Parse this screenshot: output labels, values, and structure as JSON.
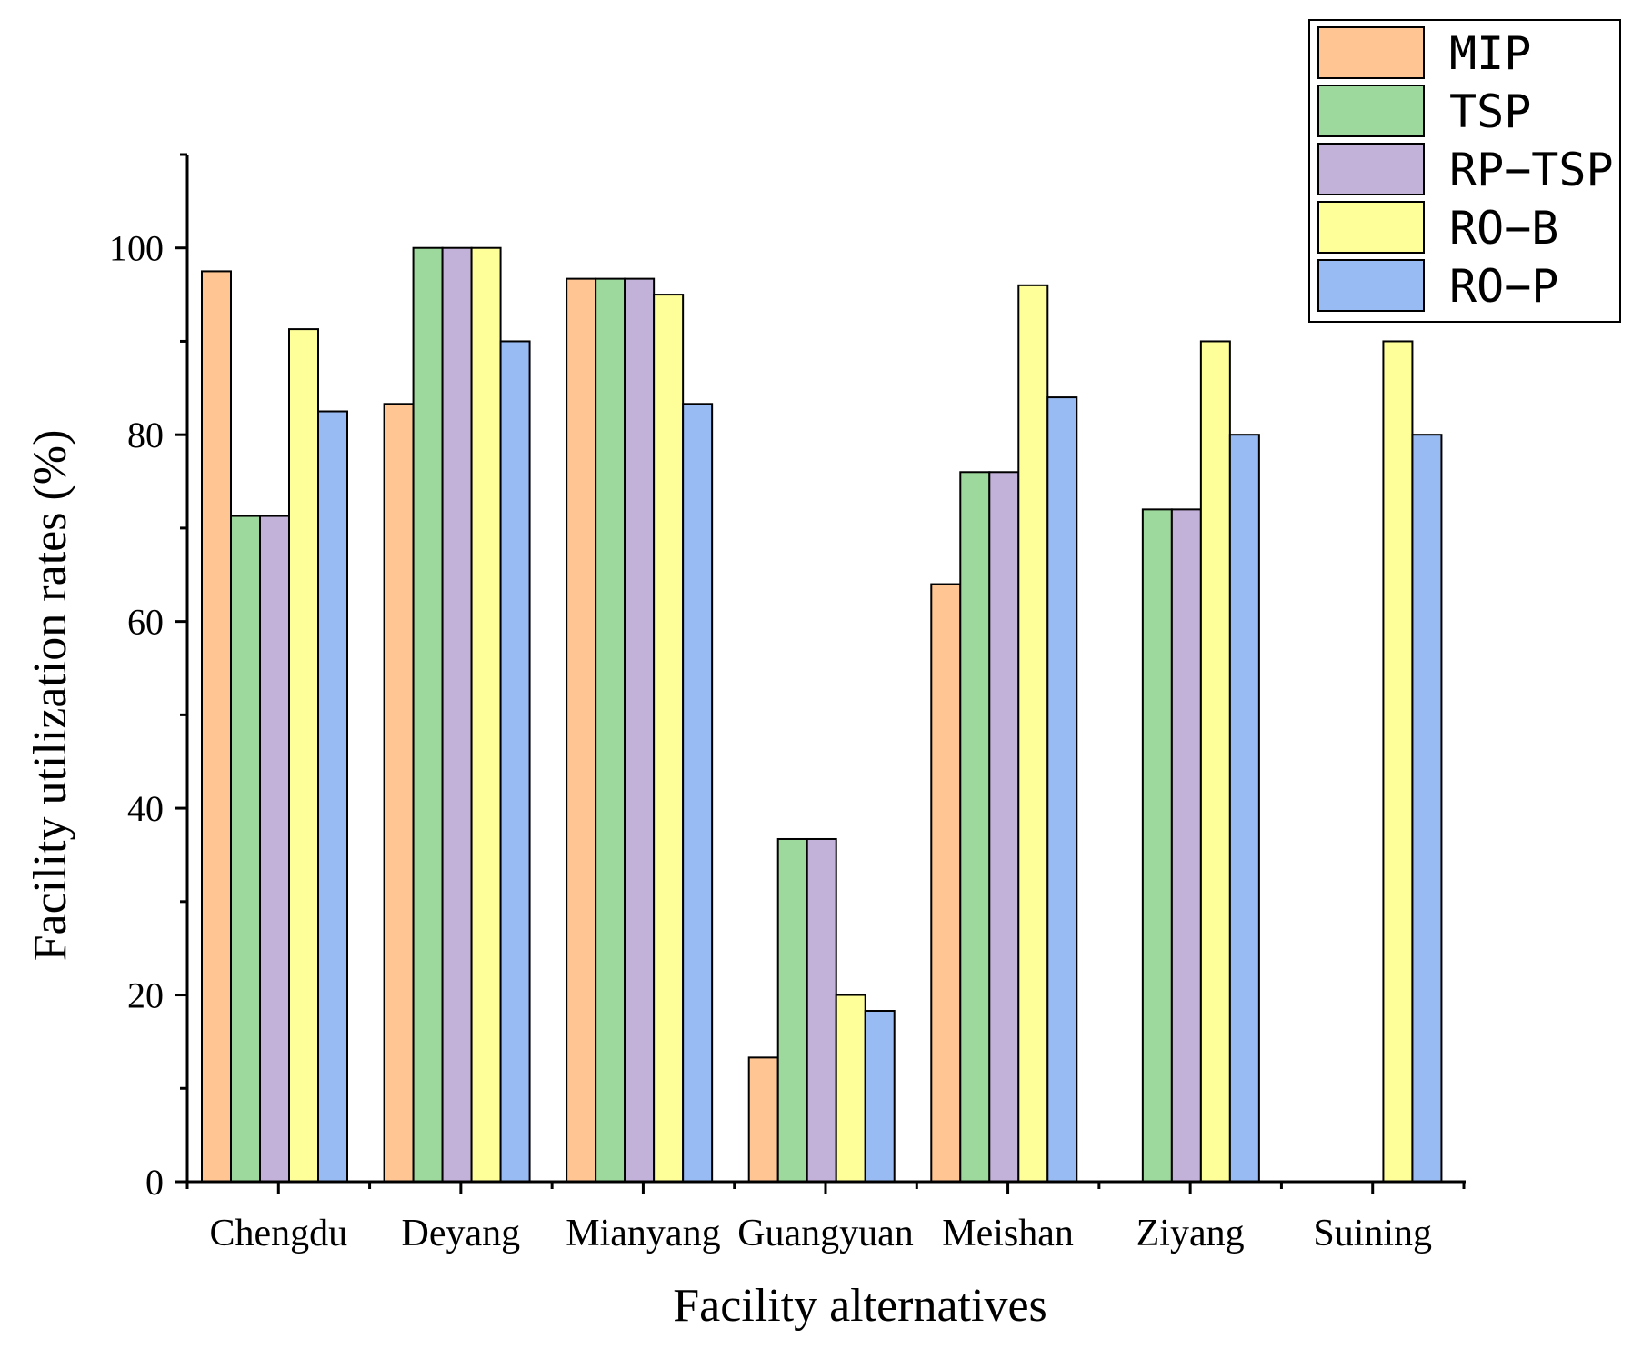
{
  "chart_data": {
    "type": "bar",
    "title": "",
    "xlabel": "Facility alternatives",
    "ylabel": "Facility utilization rates (%)",
    "ylim": [
      0,
      110
    ],
    "yticks": [
      0,
      20,
      40,
      60,
      80,
      100
    ],
    "grid": false,
    "legend_position": "top-right",
    "categories": [
      "Chengdu",
      "Deyang",
      "Mianyang",
      "Guangyuan",
      "Meishan",
      "Ziyang",
      "Suining"
    ],
    "series": [
      {
        "name": "MIP",
        "color": "#FFC593",
        "values": [
          97.5,
          83.3,
          96.7,
          13.3,
          64,
          0,
          0
        ]
      },
      {
        "name": "TSP",
        "color": "#9DD99C",
        "values": [
          71.3,
          100,
          96.7,
          36.7,
          76,
          72,
          0
        ]
      },
      {
        "name": "RP−TSP",
        "color": "#C2B1D8",
        "values": [
          71.3,
          100,
          96.7,
          36.7,
          76,
          72,
          0
        ]
      },
      {
        "name": "RO−B",
        "color": "#FFFF99",
        "values": [
          91.3,
          100,
          95,
          20,
          96,
          90,
          90
        ]
      },
      {
        "name": "RO−P",
        "color": "#99BBF4",
        "values": [
          82.5,
          90,
          83.3,
          18.3,
          84,
          80,
          80
        ]
      }
    ]
  }
}
